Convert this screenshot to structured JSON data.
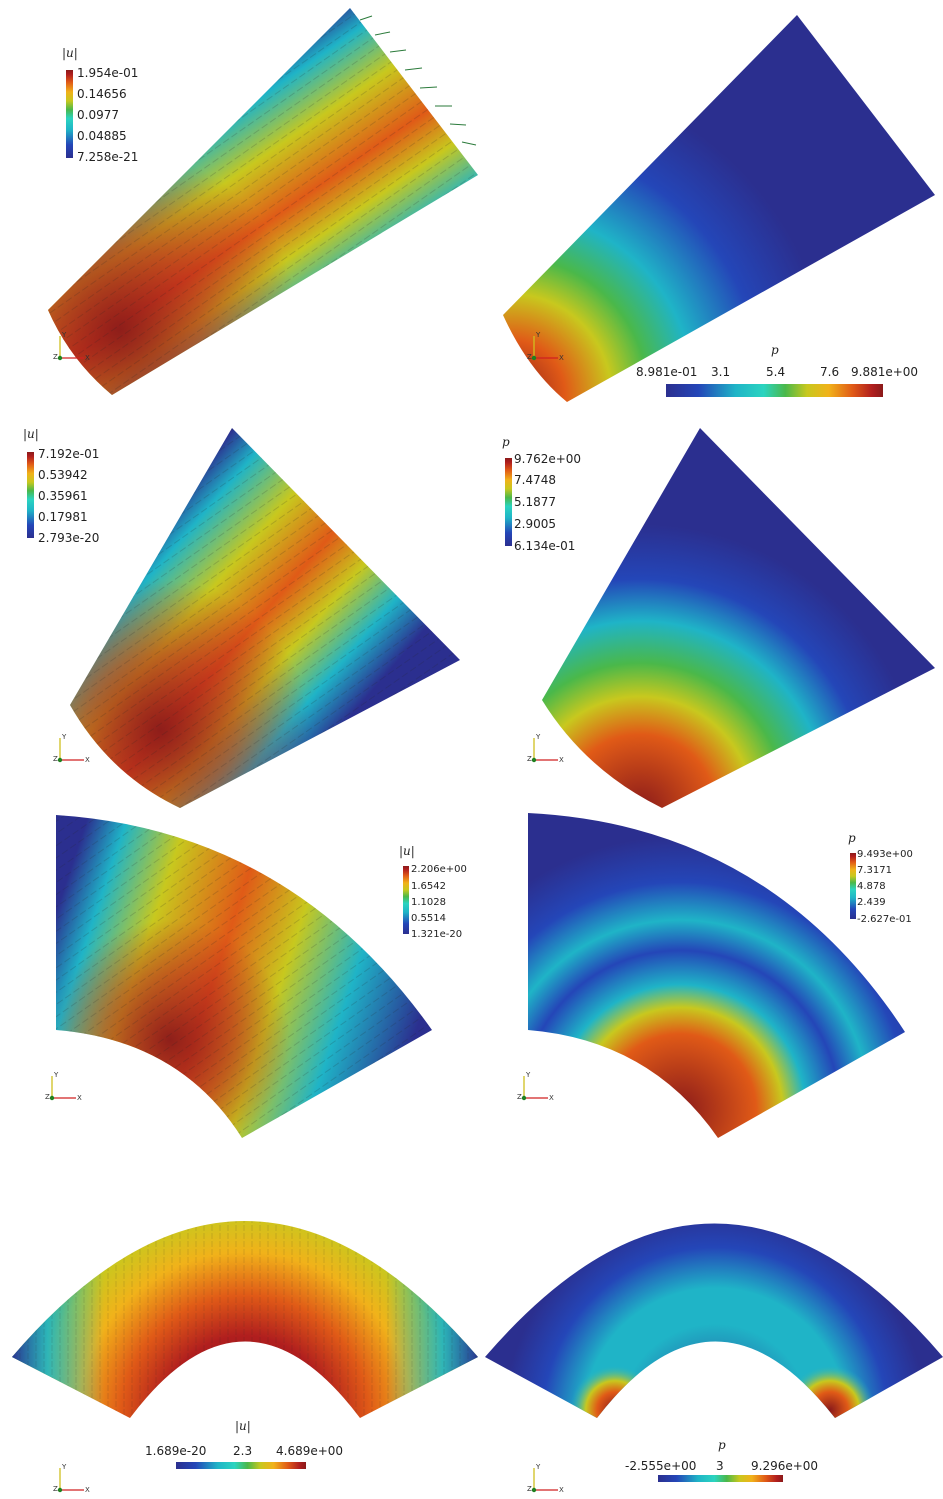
{
  "panels": [
    {
      "name": "panel-1-velocity",
      "field": "u",
      "sector": {
        "cx": 0,
        "cy": 2,
        "r0": 200,
        "r1": 780,
        "a0": -32,
        "a1": -12
      },
      "colorbar": {
        "orientation": "vertical",
        "title": "|u|",
        "labels": [
          "1.954e-01",
          "0.14656",
          "0.0977",
          "0.04885",
          "7.258e-21"
        ]
      }
    },
    {
      "name": "panel-1-pressure",
      "field": "p",
      "colorbar": {
        "orientation": "horizontal",
        "title": "p",
        "labels": [
          "8.981e-01",
          "3.1",
          "5.4",
          "7.6",
          "9.881e+00"
        ]
      }
    },
    {
      "name": "panel-2-velocity",
      "field": "u",
      "colorbar": {
        "orientation": "vertical",
        "title": "|u|",
        "labels": [
          "7.192e-01",
          "0.53942",
          "0.35961",
          "0.17981",
          "2.793e-20"
        ]
      }
    },
    {
      "name": "panel-2-pressure",
      "field": "p",
      "colorbar": {
        "orientation": "vertical",
        "title": "p",
        "labels": [
          "9.762e+00",
          "7.4748",
          "5.1877",
          "2.9005",
          "6.134e-01"
        ]
      }
    },
    {
      "name": "panel-3-velocity",
      "field": "u",
      "colorbar": {
        "orientation": "vertical",
        "title": "|u|",
        "labels": [
          "2.206e+00",
          "1.6542",
          "1.1028",
          "0.5514",
          "1.321e-20"
        ]
      }
    },
    {
      "name": "panel-3-pressure",
      "field": "p",
      "colorbar": {
        "orientation": "vertical",
        "title": "p",
        "labels": [
          "9.493e+00",
          "7.3171",
          "4.878",
          "2.439",
          "-2.627e-01"
        ]
      }
    },
    {
      "name": "panel-4-velocity",
      "field": "u",
      "colorbar": {
        "orientation": "horizontal",
        "title": "|u|",
        "labels": [
          "1.689e-20",
          "2.3",
          "4.689e+00"
        ]
      }
    },
    {
      "name": "panel-4-pressure",
      "field": "p",
      "colorbar": {
        "orientation": "horizontal",
        "title": "p",
        "labels": [
          "-2.555e+00",
          "3",
          "9.296e+00"
        ]
      }
    }
  ],
  "axes_triad": {
    "x_label": "X",
    "y_label": "Y",
    "z_label": "Z"
  },
  "colors": {
    "colormap": [
      "#2b2f8f",
      "#2446b8",
      "#1fb4c7",
      "#2bd4c0",
      "#4ab84a",
      "#c8c81e",
      "#f1b21a",
      "#e05a17",
      "#b01e1e",
      "#8a1a1a"
    ],
    "background": "#ffffff"
  }
}
